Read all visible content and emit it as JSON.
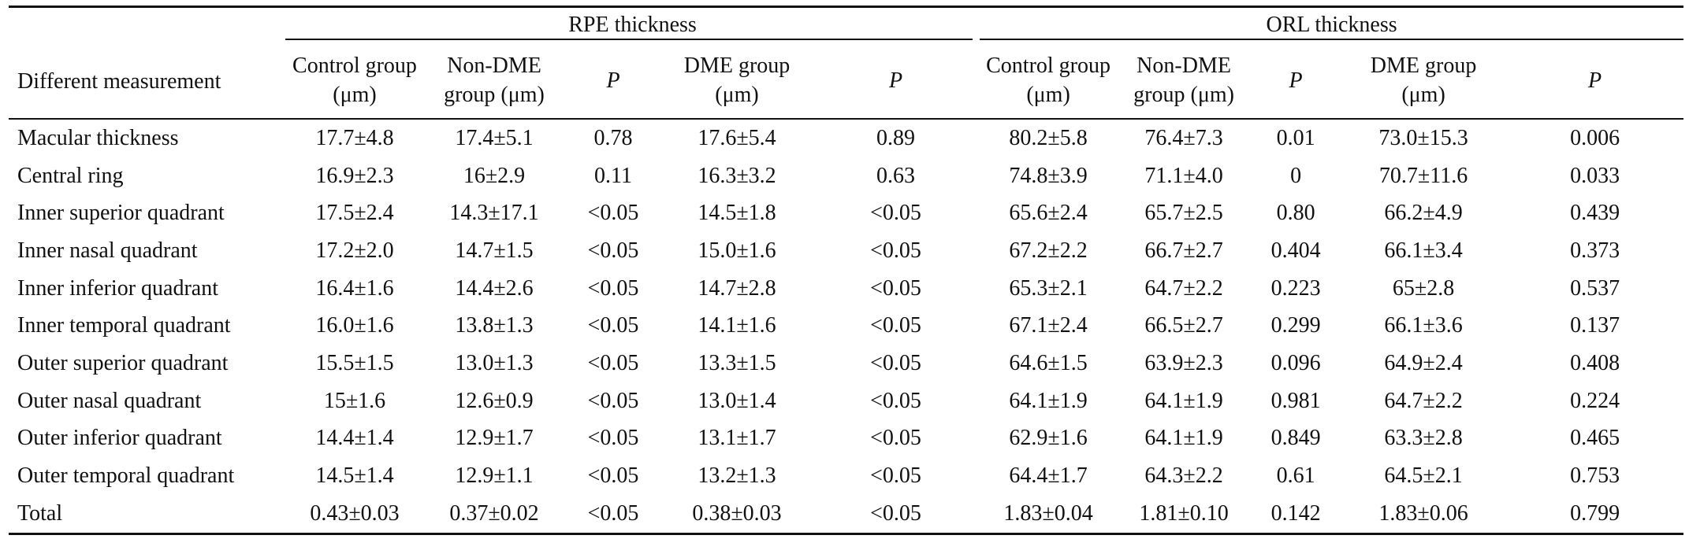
{
  "table": {
    "row_header": "Different measurement",
    "groups": [
      {
        "label": "RPE thickness"
      },
      {
        "label": "ORL thickness"
      }
    ],
    "columns": [
      {
        "line1": "Control group",
        "line2": "(μm)"
      },
      {
        "line1": "Non-DME",
        "line2": "group (μm)"
      },
      {
        "line1": "P",
        "line2": ""
      },
      {
        "line1": "DME group",
        "line2": "(μm)"
      },
      {
        "line1": "P",
        "line2": ""
      },
      {
        "line1": "Control group",
        "line2": "(μm)"
      },
      {
        "line1": "Non-DME",
        "line2": "group (μm)"
      },
      {
        "line1": "P",
        "line2": ""
      },
      {
        "line1": "DME group",
        "line2": "(μm)"
      },
      {
        "line1": "P",
        "line2": ""
      }
    ],
    "rows": [
      {
        "label": "Macular thickness",
        "cells": [
          "17.7±4.8",
          "17.4±5.1",
          "0.78",
          "17.6±5.4",
          "0.89",
          "80.2±5.8",
          "76.4±7.3",
          "0.01",
          "73.0±15.3",
          "0.006"
        ]
      },
      {
        "label": "Central ring",
        "cells": [
          "16.9±2.3",
          "16±2.9",
          "0.11",
          "16.3±3.2",
          "0.63",
          "74.8±3.9",
          "71.1±4.0",
          "0",
          "70.7±11.6",
          "0.033"
        ]
      },
      {
        "label": "Inner superior quadrant",
        "cells": [
          "17.5±2.4",
          "14.3±17.1",
          "<0.05",
          "14.5±1.8",
          "<0.05",
          "65.6±2.4",
          "65.7±2.5",
          "0.80",
          "66.2±4.9",
          "0.439"
        ]
      },
      {
        "label": "Inner nasal quadrant",
        "cells": [
          "17.2±2.0",
          "14.7±1.5",
          "<0.05",
          "15.0±1.6",
          "<0.05",
          "67.2±2.2",
          "66.7±2.7",
          "0.404",
          "66.1±3.4",
          "0.373"
        ]
      },
      {
        "label": "Inner inferior quadrant",
        "cells": [
          "16.4±1.6",
          "14.4±2.6",
          "<0.05",
          "14.7±2.8",
          "<0.05",
          "65.3±2.1",
          "64.7±2.2",
          "0.223",
          "65±2.8",
          "0.537"
        ]
      },
      {
        "label": "Inner temporal quadrant",
        "cells": [
          "16.0±1.6",
          "13.8±1.3",
          "<0.05",
          "14.1±1.6",
          "<0.05",
          "67.1±2.4",
          "66.5±2.7",
          "0.299",
          "66.1±3.6",
          "0.137"
        ]
      },
      {
        "label": "Outer superior quadrant",
        "cells": [
          "15.5±1.5",
          "13.0±1.3",
          "<0.05",
          "13.3±1.5",
          "<0.05",
          "64.6±1.5",
          "63.9±2.3",
          "0.096",
          "64.9±2.4",
          "0.408"
        ]
      },
      {
        "label": "Outer nasal quadrant",
        "cells": [
          "15±1.6",
          "12.6±0.9",
          "<0.05",
          "13.0±1.4",
          "<0.05",
          "64.1±1.9",
          "64.1±1.9",
          "0.981",
          "64.7±2.2",
          "0.224"
        ]
      },
      {
        "label": "Outer inferior quadrant",
        "cells": [
          "14.4±1.4",
          "12.9±1.7",
          "<0.05",
          "13.1±1.7",
          "<0.05",
          "62.9±1.6",
          "64.1±1.9",
          "0.849",
          "63.3±2.8",
          "0.465"
        ]
      },
      {
        "label": "Outer temporal quadrant",
        "cells": [
          "14.5±1.4",
          "12.9±1.1",
          "<0.05",
          "13.2±1.3",
          "<0.05",
          "64.4±1.7",
          "64.3±2.2",
          "0.61",
          "64.5±2.1",
          "0.753"
        ]
      },
      {
        "label": "Total",
        "cells": [
          "0.43±0.03",
          "0.37±0.02",
          "<0.05",
          "0.38±0.03",
          "<0.05",
          "1.83±0.04",
          "1.81±0.10",
          "0.142",
          "1.83±0.06",
          "0.799"
        ]
      }
    ]
  }
}
